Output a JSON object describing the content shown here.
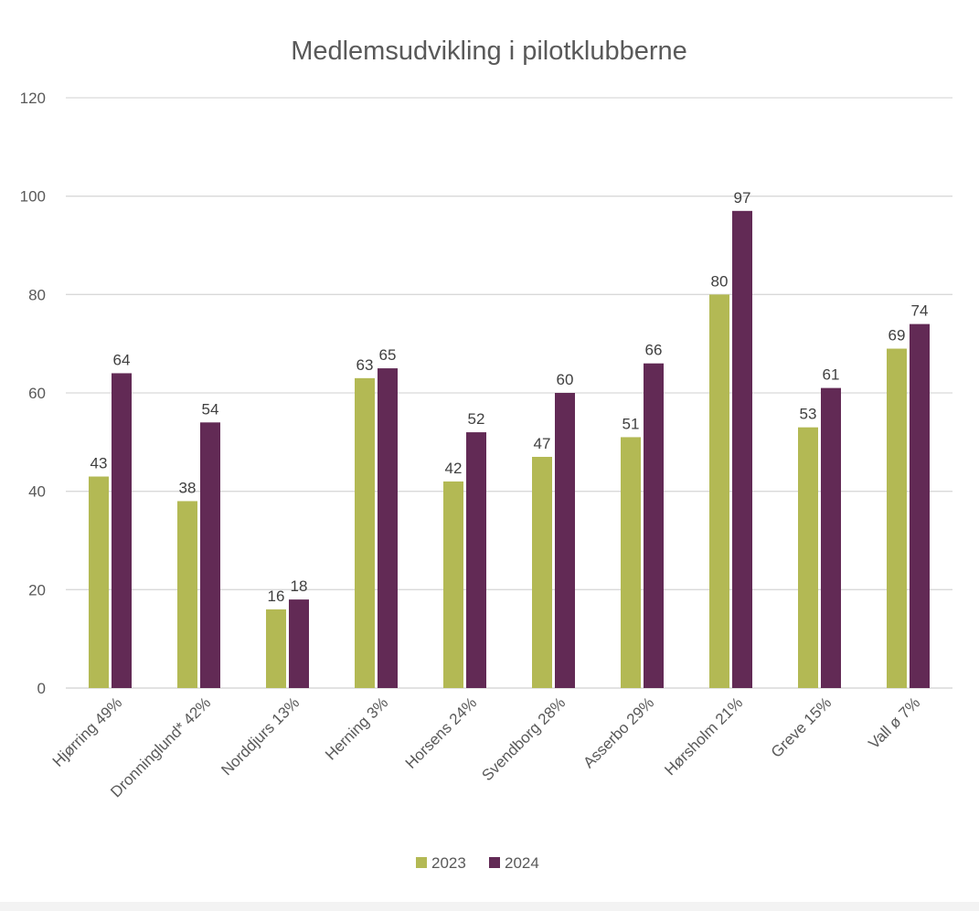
{
  "chart_data": {
    "type": "bar",
    "title": "Medlemsudvikling i pilotklubberne",
    "xlabel": "",
    "ylabel": "",
    "categories": [
      "Hjørring 49%",
      "Dronninglund* 42%",
      "Norddjurs 13%",
      "Herning 3%",
      "Horsens 24%",
      "Svendborg 28%",
      "Asserbo 29%",
      "Hørsholm 21%",
      "Greve 15%",
      "Vall ø 7%"
    ],
    "series": [
      {
        "name": "2023",
        "color": "#b3b954",
        "values": [
          43,
          38,
          16,
          63,
          42,
          47,
          51,
          80,
          53,
          69
        ]
      },
      {
        "name": "2024",
        "color": "#622a55",
        "values": [
          64,
          54,
          18,
          65,
          52,
          60,
          66,
          97,
          61,
          74
        ]
      }
    ],
    "ylim": [
      0,
      120
    ],
    "yticks": [
      0,
      20,
      40,
      60,
      80,
      100,
      120
    ],
    "grid": true,
    "legend_position": "bottom",
    "data_labels": true
  }
}
